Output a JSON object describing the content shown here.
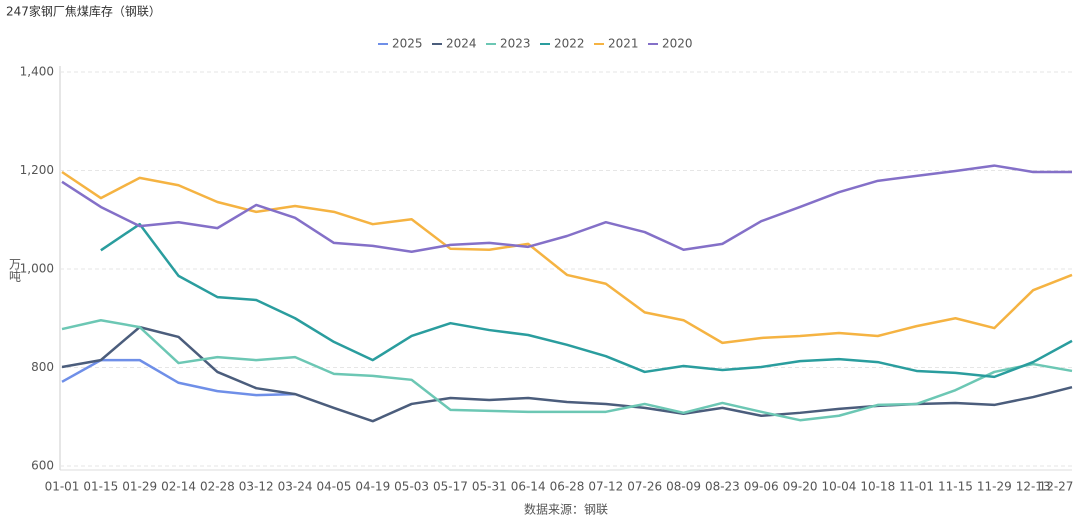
{
  "chart_data": {
    "type": "line",
    "title": "247家钢厂焦煤库存（钢联）",
    "y_label": "万吨",
    "x_label": "数据来源：钢联",
    "categories": [
      "01-01",
      "01-15",
      "01-29",
      "02-14",
      "02-28",
      "03-12",
      "03-24",
      "04-05",
      "04-19",
      "05-03",
      "05-17",
      "05-31",
      "06-14",
      "06-28",
      "07-12",
      "07-26",
      "08-09",
      "08-23",
      "09-06",
      "09-20",
      "10-04",
      "10-18",
      "11-01",
      "11-15",
      "11-29",
      "12-13",
      "12-27"
    ],
    "ylim": [
      600,
      1400
    ],
    "yticks": [
      600,
      800,
      {
        "value": 1000,
        "label": "1,000"
      },
      {
        "value": 1200,
        "label": "1,200"
      },
      {
        "value": 1400,
        "label": "1,400"
      }
    ],
    "grid": true,
    "series": [
      {
        "name": "2025",
        "color": "#6f8fe8",
        "values": [
          771,
          815,
          815,
          769,
          752,
          744,
          746,
          null,
          null,
          null,
          null,
          null,
          null,
          null,
          null,
          null,
          null,
          null,
          null,
          null,
          null,
          null,
          null,
          null,
          null,
          null,
          null
        ]
      },
      {
        "name": "2024",
        "color": "#4b5d7c",
        "values": [
          801,
          815,
          882,
          862,
          791,
          758,
          746,
          718,
          691,
          726,
          738,
          734,
          738,
          730,
          726,
          718,
          706,
          718,
          702,
          708,
          716,
          722,
          726,
          728,
          724,
          740,
          760
        ]
      },
      {
        "name": "2023",
        "color": "#6cc7b4",
        "values": [
          878,
          896,
          882,
          809,
          821,
          815,
          821,
          787,
          783,
          775,
          714,
          712,
          710,
          710,
          710,
          726,
          708,
          728,
          710,
          693,
          702,
          724,
          726,
          754,
          791,
          807,
          793
        ]
      },
      {
        "name": "2022",
        "color": "#2a9d9e",
        "values": [
          null,
          1038,
          1091,
          986,
          943,
          937,
          900,
          852,
          815,
          864,
          890,
          876,
          866,
          846,
          823,
          791,
          803,
          795,
          801,
          813,
          817,
          811,
          793,
          789,
          781,
          811,
          854
        ]
      },
      {
        "name": "2021",
        "color": "#f5b342",
        "values": [
          1197,
          1144,
          1185,
          1170,
          1136,
          1116,
          1128,
          1116,
          1091,
          1101,
          1041,
          1039,
          1051,
          988,
          970,
          912,
          896,
          850,
          860,
          864,
          870,
          864,
          884,
          900,
          880,
          957,
          988
        ]
      },
      {
        "name": "2020",
        "color": "#8470c8",
        "values": [
          1177,
          1126,
          1087,
          1095,
          1083,
          1130,
          1104,
          1053,
          1047,
          1035,
          1049,
          1053,
          1045,
          1067,
          1095,
          1075,
          1039,
          1051,
          1097,
          1126,
          1156,
          1179,
          1189,
          1199,
          1210,
          1197,
          1197
        ]
      }
    ]
  }
}
